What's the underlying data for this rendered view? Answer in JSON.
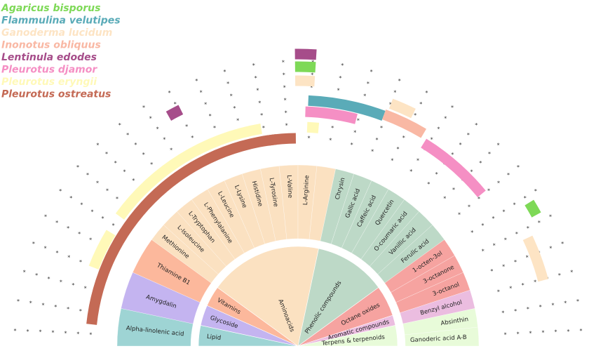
{
  "chart_data": {
    "type": "sunburst-semicircle",
    "species": [
      {
        "name": "Agaricus bisporus",
        "color": "#7ed957"
      },
      {
        "name": "Flammulina velutipes",
        "color": "#5aabb8"
      },
      {
        "name": "Ganoderma lucidum",
        "color": "#fde4c4"
      },
      {
        "name": "Inonotus obliquus",
        "color": "#f9b8a4"
      },
      {
        "name": "Lentinula edodes",
        "color": "#a64d8a"
      },
      {
        "name": "Pleurotus djamor",
        "color": "#f58fc4"
      },
      {
        "name": "Pleurotus eryngii",
        "color": "#fff9b8"
      },
      {
        "name": "Pleurotus ostreatus",
        "color": "#c46a55"
      }
    ],
    "categories": [
      {
        "name": "Lipid",
        "span": 2,
        "color": "#9ed4d4"
      },
      {
        "name": "Glycoside",
        "span": 2,
        "color": "#c4b4f0"
      },
      {
        "name": "Vitamins",
        "span": 2,
        "color": "#fcb89c"
      },
      {
        "name": "Aminoacids",
        "span": 11,
        "color": "#fbe1c1"
      },
      {
        "name": "Phenolic compounds",
        "span": 7,
        "color": "#bdd9c7"
      },
      {
        "name": "Octane oxides",
        "span": 3,
        "color": "#f6a3a0"
      },
      {
        "name": "Aromatic compounds",
        "span": 1,
        "color": "#ebbde0"
      },
      {
        "name": "Terpens & terpenoids",
        "span": 2,
        "color": "#e8fbd9"
      }
    ],
    "compounds": [
      {
        "name": "Alpha-linolenic acid",
        "category": "Lipid",
        "span": 2
      },
      {
        "name": "Amygdalin",
        "category": "Glycoside",
        "span": 2
      },
      {
        "name": "Thiamine B1",
        "category": "Vitamins",
        "span": 2
      },
      {
        "name": "Methionine",
        "category": "Aminoacids",
        "span": 1
      },
      {
        "name": "L-Isoleucine",
        "category": "Aminoacids",
        "span": 1
      },
      {
        "name": "L-Tryptophan",
        "category": "Aminoacids",
        "span": 1
      },
      {
        "name": "L-Phenylalanine",
        "category": "Aminoacids",
        "span": 1
      },
      {
        "name": "L-Leucine",
        "category": "Aminoacids",
        "span": 1
      },
      {
        "name": "L-Lysine",
        "category": "Aminoacids",
        "span": 1
      },
      {
        "name": "Histidine",
        "category": "Aminoacids",
        "span": 1
      },
      {
        "name": "L-Tyrosine",
        "category": "Aminoacids",
        "span": 1
      },
      {
        "name": "L-Valine",
        "category": "Aminoacids",
        "span": 1
      },
      {
        "name": "L-Arginine",
        "category": "Aminoacids",
        "span": 1
      },
      {
        "name": "",
        "category": "Aminoacids",
        "span": 1
      },
      {
        "name": "Chrysin",
        "category": "Phenolic compounds",
        "span": 1
      },
      {
        "name": "Gallic acid",
        "category": "Phenolic compounds",
        "span": 1
      },
      {
        "name": "Caffeic acid",
        "category": "Phenolic compounds",
        "span": 1
      },
      {
        "name": "Quercetin",
        "category": "Phenolic compounds",
        "span": 1
      },
      {
        "name": "O-coumaric acid",
        "category": "Phenolic compounds",
        "span": 1
      },
      {
        "name": "Vanillic acid",
        "category": "Phenolic compounds",
        "span": 1
      },
      {
        "name": "Ferulic acid",
        "category": "Phenolic compounds",
        "span": 1
      },
      {
        "name": "1-octen-3ol",
        "category": "Octane oxides",
        "span": 1
      },
      {
        "name": "3-octanone",
        "category": "Octane oxides",
        "span": 1
      },
      {
        "name": "3-octanol",
        "category": "Octane oxides",
        "span": 1
      },
      {
        "name": "Benzyl alcohol",
        "category": "Aromatic compounds",
        "span": 1
      },
      {
        "name": "Absinthin",
        "category": "Terpens & terpenoids",
        "span": 1
      },
      {
        "name": "Ganoderic acid A-B",
        "category": "Terpens & terpenoids",
        "span": 1
      }
    ],
    "presence": [
      {
        "species": "Pleurotus ostreatus",
        "from": 1,
        "to": 14
      },
      {
        "species": "Pleurotus eryngii",
        "from": 3.5,
        "to": 5.2
      },
      {
        "species": "Pleurotus eryngii",
        "from": 6,
        "to": 13.4
      },
      {
        "species": "Lentinula edodes",
        "from": 10.1,
        "to": 10.6
      },
      {
        "species": "Pleurotus ostreatus",
        "from": 13.6,
        "to": 14.9
      },
      {
        "species": "Lentinula edodes",
        "from": 14.9,
        "to": 15.6
      },
      {
        "species": "Agaricus bisporus",
        "from": 14.9,
        "to": 15.6
      },
      {
        "species": "Ganoderma lucidum",
        "from": 14.9,
        "to": 15.6
      },
      {
        "species": "Flammulina velutipes",
        "from": 15.4,
        "to": 18.4
      },
      {
        "species": "Pleurotus djamor",
        "from": 15.3,
        "to": 17.4
      },
      {
        "species": "Pleurotus eryngii",
        "from": 15.4,
        "to": 15.9
      },
      {
        "species": "Ganoderma lucidum",
        "from": 18.5,
        "to": 19.4
      },
      {
        "species": "Inonotus obliquus",
        "from": 18.4,
        "to": 20.1
      },
      {
        "species": "Pleurotus djamor",
        "from": 20.3,
        "to": 23.4
      },
      {
        "species": "Agaricus bisporus",
        "from": 24.7,
        "to": 25.2
      },
      {
        "species": "Ganoderma lucidum",
        "from": 25.8,
        "to": 27.5
      }
    ]
  }
}
